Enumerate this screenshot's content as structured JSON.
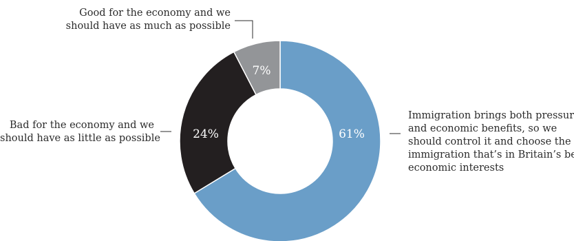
{
  "chart_data": {
    "type": "pie",
    "donut": true,
    "categories": [
      "Immigration brings both pressures and economic benefits, so we should control it and choose the immigration that’s in Britain’s best economic interests",
      "Bad for the economy and we should have as little as possible",
      "Good for the economy and we should have as much as possible"
    ],
    "values": [
      61,
      24,
      7
    ],
    "value_labels": [
      "61%",
      "24%",
      "7%"
    ],
    "colors": [
      "#6a9ec8",
      "#231f20",
      "#939598"
    ],
    "label_lines": {
      "good": [
        "Good for the economy and we",
        "should have as much as possible"
      ],
      "bad": [
        "Bad for the economy and we",
        "should have as little as possible"
      ],
      "imm": [
        "Immigration brings both pressures",
        "and economic benefits, so we",
        "should control it and choose the",
        "immigration that’s in Britain’s best",
        "economic interests"
      ]
    }
  }
}
